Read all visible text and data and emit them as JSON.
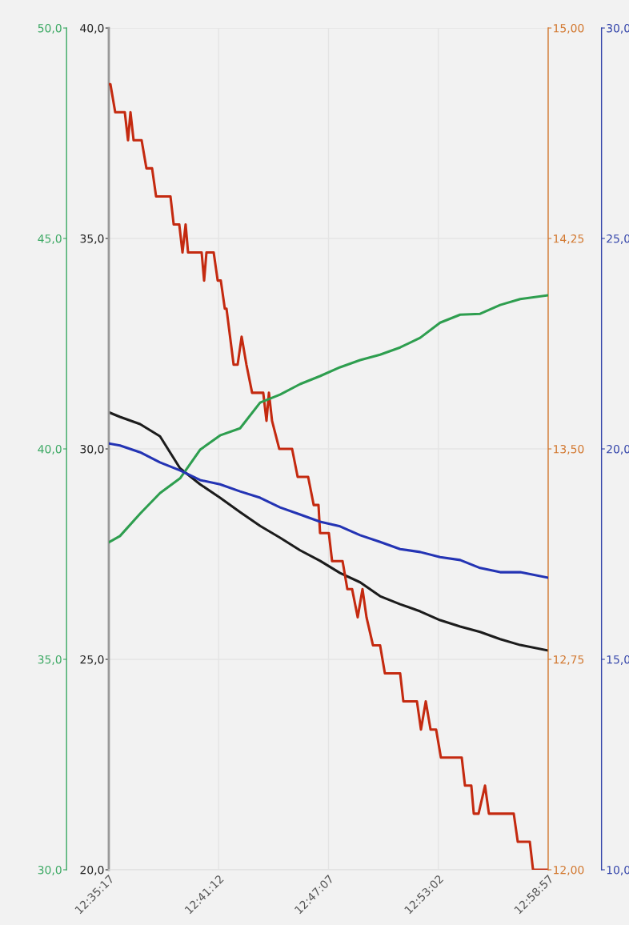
{
  "chart_data": [
    {
      "type": "line",
      "grid": true,
      "marker": "none",
      "line_style": "solid",
      "xlim": [
        12.588056,
        12.9825
      ],
      "xticks": [
        {
          "value": 12.588056,
          "label": "12:35:17"
        },
        {
          "value": 12.686667,
          "label": "12:41:12"
        },
        {
          "value": 12.785278,
          "label": "12:47:07"
        },
        {
          "value": 12.883889,
          "label": "12:53:02"
        },
        {
          "value": 12.9825,
          "label": "12:58:57"
        }
      ],
      "ylim": [
        20,
        40
      ],
      "yticks": [
        {
          "value": 20,
          "label": "20,0"
        },
        {
          "value": 25,
          "label": "25,0"
        },
        {
          "value": 30,
          "label": "30,0"
        },
        {
          "value": 35,
          "label": "35,0"
        },
        {
          "value": 40,
          "label": "40,0"
        }
      ],
      "y2lim": [
        12,
        15
      ],
      "y2ticks": [
        {
          "value": 12,
          "label": "12,00"
        },
        {
          "value": 12.75,
          "label": "12,75"
        },
        {
          "value": 13.5,
          "label": "13,50"
        },
        {
          "value": 14.25,
          "label": "14,25"
        },
        {
          "value": 15,
          "label": "15,00"
        }
      ],
      "series": [
        {
          "axis": "y",
          "color": "#1c1c1c",
          "x": [
            12.5881,
            12.5981,
            12.6161,
            12.634,
            12.652,
            12.67,
            12.6879,
            12.7059,
            12.7239,
            12.7418,
            12.7598,
            12.7777,
            12.7957,
            12.8137,
            12.8316,
            12.8496,
            12.8676,
            12.8855,
            12.9035,
            12.9214,
            12.9394,
            12.9574,
            12.9825
          ],
          "values": [
            30.87,
            30.76,
            30.59,
            30.3,
            29.54,
            29.16,
            28.84,
            28.5,
            28.17,
            27.89,
            27.59,
            27.34,
            27.05,
            26.83,
            26.5,
            26.31,
            26.14,
            25.93,
            25.78,
            25.65,
            25.48,
            25.34,
            25.21
          ]
        },
        {
          "axis": "y2",
          "color": "#c42a10",
          "x": [
            12.5881,
            12.5895,
            12.5938,
            12.6024,
            12.6053,
            12.6075,
            12.6103,
            12.6175,
            12.6218,
            12.6269,
            12.6305,
            12.6434,
            12.6463,
            12.6513,
            12.6542,
            12.657,
            12.6592,
            12.6714,
            12.6736,
            12.6757,
            12.6822,
            12.6858,
            12.6886,
            12.6922,
            12.6937,
            12.7001,
            12.7037,
            12.7073,
            12.7116,
            12.7167,
            12.7267,
            12.7296,
            12.7318,
            12.7346,
            12.7411,
            12.7526,
            12.7576,
            12.767,
            12.772,
            12.7763,
            12.7777,
            12.7856,
            12.7885,
            12.7979,
            12.8022,
            12.8065,
            12.8115,
            12.8158,
            12.8194,
            12.8252,
            12.8316,
            12.8359,
            12.8496,
            12.8525,
            12.8647,
            12.8683,
            12.8726,
            12.8769,
            12.8819,
            12.8862,
            12.9049,
            12.9078,
            12.9135,
            12.9157,
            12.92,
            12.9258,
            12.9293,
            12.9516,
            12.9552,
            12.966,
            12.9689,
            12.9825
          ],
          "values": [
            14.8,
            14.8,
            14.7,
            14.7,
            14.6,
            14.7,
            14.6,
            14.6,
            14.5,
            14.5,
            14.4,
            14.4,
            14.3,
            14.3,
            14.2,
            14.3,
            14.2,
            14.2,
            14.1,
            14.2,
            14.2,
            14.1,
            14.1,
            14.0,
            14.0,
            13.8,
            13.8,
            13.9,
            13.8,
            13.7,
            13.7,
            13.6,
            13.7,
            13.6,
            13.5,
            13.5,
            13.4,
            13.4,
            13.3,
            13.3,
            13.2,
            13.2,
            13.1,
            13.1,
            13.0,
            13.0,
            12.9,
            13.0,
            12.9,
            12.8,
            12.8,
            12.7,
            12.7,
            12.6,
            12.6,
            12.5,
            12.6,
            12.5,
            12.5,
            12.4,
            12.4,
            12.3,
            12.3,
            12.2,
            12.2,
            12.3,
            12.2,
            12.2,
            12.1,
            12.1,
            12.0,
            12.0
          ]
        }
      ]
    },
    {
      "type": "line",
      "marker": "none",
      "line_style": "solid",
      "tick_labels": "y",
      "xlim": [
        12.588056,
        12.9825
      ],
      "ylim": [
        30,
        50
      ],
      "yticks": [
        {
          "value": 30,
          "label": "30,0"
        },
        {
          "value": 35,
          "label": "35,0"
        },
        {
          "value": 40,
          "label": "40,0"
        },
        {
          "value": 45,
          "label": "45,0"
        },
        {
          "value": 50,
          "label": "50,0"
        }
      ],
      "y2lim": [
        10,
        30
      ],
      "y2ticks": [
        {
          "value": 10,
          "label": "10,0"
        },
        {
          "value": 15,
          "label": "15,0"
        },
        {
          "value": 20,
          "label": "20,0"
        },
        {
          "value": 25,
          "label": "25,0"
        },
        {
          "value": 30,
          "label": "30,0"
        }
      ],
      "series": [
        {
          "axis": "y",
          "color": "#2e9e4f",
          "x": [
            12.5881,
            12.5981,
            12.6161,
            12.634,
            12.652,
            12.67,
            12.6879,
            12.7059,
            12.7239,
            12.7418,
            12.7598,
            12.7777,
            12.7957,
            12.8137,
            12.8316,
            12.8496,
            12.8676,
            12.8855,
            12.9035,
            12.9214,
            12.9394,
            12.9574,
            12.9825
          ],
          "values": [
            37.78,
            37.93,
            38.46,
            38.95,
            39.3,
            39.98,
            40.32,
            40.49,
            41.1,
            41.29,
            41.54,
            41.73,
            41.94,
            42.11,
            42.24,
            42.41,
            42.64,
            43.0,
            43.19,
            43.21,
            43.42,
            43.56,
            43.65
          ]
        },
        {
          "axis": "y2",
          "color": "#2434b4",
          "x": [
            12.5881,
            12.5981,
            12.6161,
            12.634,
            12.652,
            12.67,
            12.6879,
            12.7059,
            12.7239,
            12.7418,
            12.7598,
            12.7777,
            12.7957,
            12.8137,
            12.8316,
            12.8496,
            12.8676,
            12.8855,
            12.9035,
            12.9214,
            12.9394,
            12.9574,
            12.9825
          ],
          "values": [
            20.13,
            20.08,
            19.92,
            19.68,
            19.49,
            19.26,
            19.16,
            18.99,
            18.84,
            18.61,
            18.44,
            18.27,
            18.16,
            17.95,
            17.79,
            17.62,
            17.55,
            17.43,
            17.36,
            17.17,
            17.07,
            17.07,
            16.94
          ]
        }
      ]
    }
  ]
}
